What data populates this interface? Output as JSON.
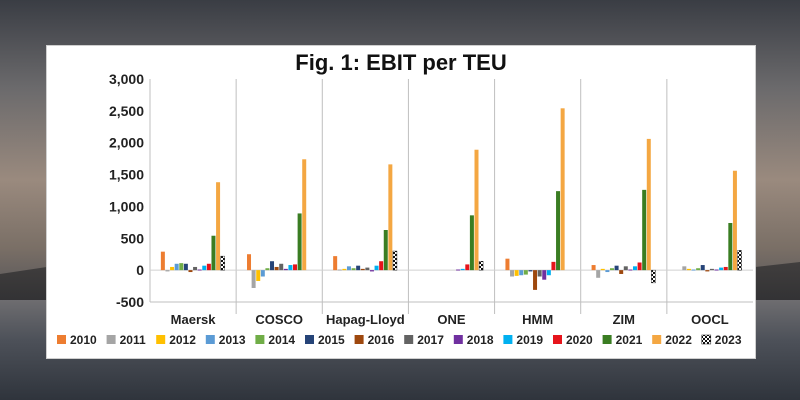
{
  "chart_data": {
    "type": "bar",
    "title": "Fig. 1: EBIT per TEU",
    "xlabel": "",
    "ylabel": "",
    "ylim": [
      -500,
      3000
    ],
    "yticks": [
      -500,
      0,
      500,
      1000,
      1500,
      2000,
      2500,
      3000
    ],
    "ytick_labels": [
      "-500",
      "0",
      "500",
      "1,000",
      "1,500",
      "2,000",
      "2,500",
      "3,000"
    ],
    "grid": false,
    "legend_position": "bottom",
    "categories": [
      "Maersk",
      "COSCO",
      "Hapag-Lloyd",
      "ONE",
      "HMM",
      "ZIM",
      "OOCL"
    ],
    "series": [
      {
        "name": "2010",
        "color": "#ed7d31",
        "pattern": "solid",
        "values": [
          290,
          250,
          220,
          null,
          180,
          80,
          null
        ]
      },
      {
        "name": "2011",
        "color": "#a5a5a5",
        "pattern": "solid",
        "values": [
          -20,
          -280,
          10,
          null,
          -100,
          -120,
          60
        ]
      },
      {
        "name": "2012",
        "color": "#ffc000",
        "pattern": "solid",
        "values": [
          50,
          -170,
          20,
          null,
          -90,
          20,
          20
        ]
      },
      {
        "name": "2013",
        "color": "#5b9bd5",
        "pattern": "solid",
        "values": [
          100,
          -100,
          60,
          null,
          -80,
          -30,
          10
        ]
      },
      {
        "name": "2014",
        "color": "#70ad47",
        "pattern": "solid",
        "values": [
          110,
          30,
          30,
          null,
          -70,
          30,
          30
        ]
      },
      {
        "name": "2015",
        "color": "#264478",
        "pattern": "solid",
        "values": [
          100,
          140,
          70,
          null,
          -20,
          70,
          80
        ]
      },
      {
        "name": "2016",
        "color": "#9e480e",
        "pattern": "solid",
        "values": [
          -30,
          50,
          20,
          null,
          -310,
          -60,
          -20
        ]
      },
      {
        "name": "2017",
        "color": "#636363",
        "pattern": "solid",
        "values": [
          50,
          100,
          40,
          null,
          -100,
          60,
          20
        ]
      },
      {
        "name": "2018",
        "color": "#7030a0",
        "pattern": "solid",
        "values": [
          10,
          20,
          -20,
          10,
          -150,
          10,
          10
        ]
      },
      {
        "name": "2019",
        "color": "#00b0f0",
        "pattern": "solid",
        "values": [
          70,
          80,
          70,
          20,
          -80,
          60,
          40
        ]
      },
      {
        "name": "2020",
        "color": "#e6141b",
        "pattern": "solid",
        "values": [
          100,
          90,
          140,
          90,
          130,
          120,
          50
        ]
      },
      {
        "name": "2021",
        "color": "#3a7d22",
        "pattern": "solid",
        "values": [
          540,
          890,
          630,
          860,
          1240,
          1260,
          740
        ]
      },
      {
        "name": "2022",
        "color": "#f4a742",
        "pattern": "solid",
        "values": [
          1380,
          1740,
          1660,
          1890,
          2540,
          2060,
          1560
        ]
      },
      {
        "name": "2023",
        "color": "#111111",
        "pattern": "checker",
        "values": [
          220,
          null,
          300,
          140,
          null,
          -200,
          310
        ]
      }
    ]
  }
}
